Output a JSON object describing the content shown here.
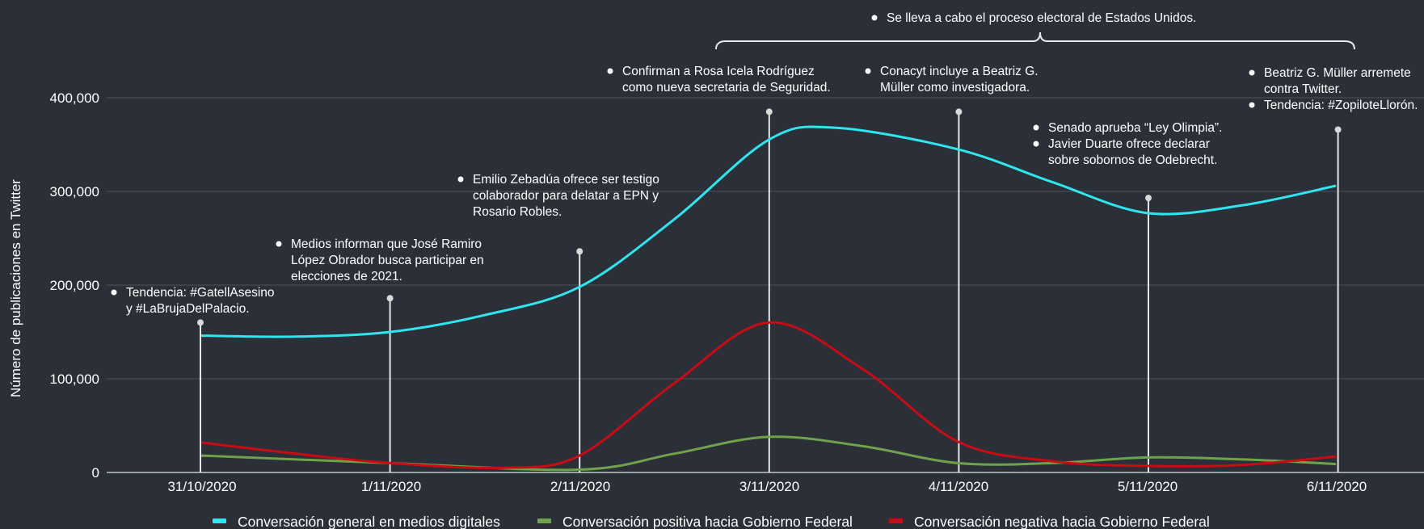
{
  "chart_data": {
    "type": "line",
    "title": "",
    "xlabel": "",
    "ylabel": "Número de publicaciones en Twitter",
    "ylim": [
      0,
      400000
    ],
    "yticks": [
      0,
      100000,
      200000,
      300000,
      400000
    ],
    "ytick_labels": [
      "0",
      "100,000",
      "200,000",
      "300,000",
      "400,000"
    ],
    "categories": [
      "31/10/2020",
      "1/11/2020",
      "2/11/2020",
      "3/11/2020",
      "4/11/2020",
      "5/11/2020",
      "6/11/2020"
    ],
    "grid": true,
    "legend_position": "bottom",
    "series": [
      {
        "name": "Conversación general en medios digitales",
        "color": "#2ee6ee",
        "x": [
          0,
          0.5,
          1,
          1.5,
          2,
          2.5,
          3,
          3.35,
          4,
          4.5,
          5,
          5.5,
          6
        ],
        "values": [
          146000,
          145000,
          150000,
          168000,
          198000,
          270000,
          355000,
          368000,
          345000,
          310000,
          277000,
          285000,
          306000
        ]
      },
      {
        "name": "Conversación positiva hacia Gobierno Federal",
        "color": "#6ea34a",
        "x": [
          0,
          1,
          2,
          2.5,
          3,
          3.5,
          4,
          4.5,
          5,
          5.5,
          6
        ],
        "values": [
          18000,
          10000,
          3000,
          20000,
          38000,
          28000,
          10000,
          10000,
          16000,
          14000,
          9000
        ]
      },
      {
        "name": "Conversación negativa hacia Gobierno Federal",
        "color": "#cc0a12",
        "x": [
          0,
          0.5,
          1,
          1.6,
          2,
          2.5,
          3,
          3.5,
          4,
          4.5,
          5,
          5.5,
          6
        ],
        "values": [
          32000,
          20000,
          10000,
          5000,
          18000,
          95000,
          160000,
          110000,
          33000,
          12000,
          7000,
          8000,
          17000
        ]
      }
    ],
    "markers": [
      {
        "x": 0,
        "top": 160000
      },
      {
        "x": 1,
        "top": 186000
      },
      {
        "x": 2,
        "top": 236000
      },
      {
        "x": 3,
        "top": 385000
      },
      {
        "x": 4,
        "top": 385000
      },
      {
        "x": 5,
        "top": 293000
      },
      {
        "x": 6,
        "top": 366000
      }
    ],
    "annotations": [
      {
        "lines": [
          "Tendencia: #GatellAsesino",
          "y #LaBrujaDelPalacio."
        ]
      },
      {
        "lines": [
          "Medios informan que José Ramiro",
          "López Obrador busca participar en",
          "elecciones de 2021."
        ]
      },
      {
        "lines": [
          "Emilio Zebadúa ofrece ser testigo",
          "colaborador para delatar a EPN y",
          "Rosario Robles."
        ]
      },
      {
        "lines": [
          "Confirman a Rosa Icela Rodríguez",
          "como nueva secretaria de Seguridad."
        ]
      },
      {
        "lines": [
          "Conacyt incluye a Beatriz G.",
          "Müller como investigadora."
        ]
      },
      {
        "lines": [
          "Senado aprueba “Ley Olimpia”."
        ]
      },
      {
        "lines": [
          "Javier Duarte ofrece declarar",
          "sobre sobornos de Odebrecht."
        ]
      },
      {
        "lines": [
          "Beatriz G. Müller arremete",
          "contra Twitter."
        ]
      },
      {
        "lines": [
          "Tendencia: #ZopiloteLlorón."
        ]
      },
      {
        "lines": [
          "Se lleva a cabo el proceso electoral de Estados Unidos."
        ]
      }
    ]
  }
}
